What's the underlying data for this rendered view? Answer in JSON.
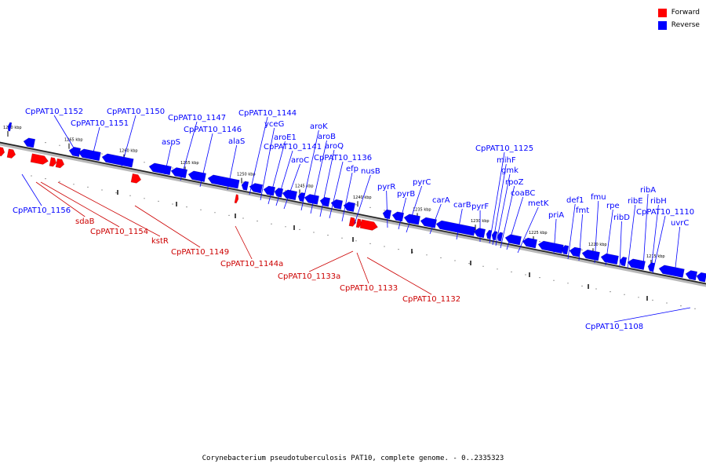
{
  "legend": {
    "forward_label": "Forward",
    "reverse_label": "Reverse",
    "forward_color": "#ff0000",
    "reverse_color": "#0000ff"
  },
  "caption": "Corynebacterium pseudotuberculosis PAT10, complete genome. - 0..2335323",
  "scale_ticks": [
    "1270 kbp",
    "1265 kbp",
    "1260 kbp",
    "1255 kbp",
    "1250 kbp",
    "1245 kbp",
    "1240 kbp",
    "1235 kbp",
    "1230 kbp",
    "1225 kbp",
    "1220 kbp",
    "1215 kbp"
  ],
  "genes": {
    "reverse": [
      "CpPAT10_1152",
      "CpPAT10_1151",
      "CpPAT10_1150",
      "CpPAT10_1147",
      "CpPAT10_1146",
      "aspS",
      "alaS",
      "CpPAT10_1144",
      "yceG",
      "aroE1",
      "CpPAT10_1141",
      "aroC",
      "aroK",
      "aroB",
      "aroQ",
      "CpPAT10_1136",
      "efp",
      "nusB",
      "pyrR",
      "pyrB",
      "pyrC",
      "carA",
      "carB",
      "pyrF",
      "CpPAT10_1125",
      "mihF",
      "gmk",
      "rpoZ",
      "coaBC",
      "metK",
      "priA",
      "def1",
      "fmt",
      "fmu",
      "rpe",
      "ribD",
      "ribE",
      "ribA",
      "ribH",
      "CpPAT10_1110",
      "uvrC",
      "CpPAT10_1156",
      "CpPAT10_1108"
    ],
    "forward": [
      "sdaB",
      "CpPAT10_1154",
      "kstR",
      "CpPAT10_1149",
      "CpPAT10_1144a",
      "CpPAT10_1133a",
      "CpPAT10_1133",
      "CpPAT10_1132"
    ]
  }
}
